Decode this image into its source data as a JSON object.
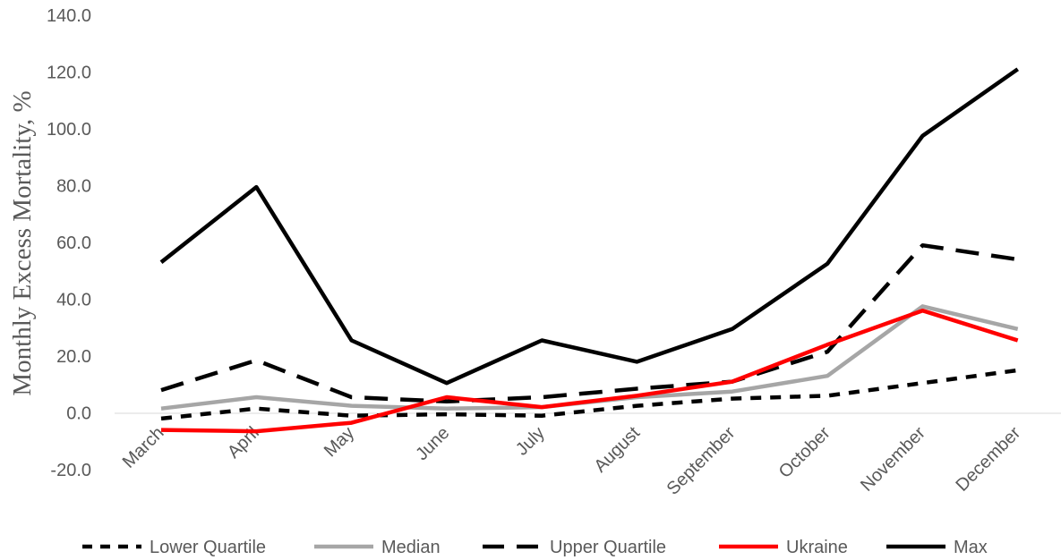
{
  "chart_data": {
    "type": "line",
    "title": "",
    "xlabel": "",
    "ylabel": "Monthly Excess Mortality, %",
    "ylim": [
      -20,
      140
    ],
    "yticks": [
      -20,
      0,
      20,
      40,
      60,
      80,
      100,
      120,
      140
    ],
    "ytick_labels": [
      "-20.0",
      "0.0",
      "20.0",
      "40.0",
      "60.0",
      "80.0",
      "100.0",
      "120.0",
      "140.0"
    ],
    "categories": [
      "March",
      "April",
      "May",
      "June",
      "July",
      "August",
      "September",
      "October",
      "November",
      "December"
    ],
    "grid": false,
    "legend_position": "bottom",
    "series": [
      {
        "name": "Lower Quartile",
        "color": "#000000",
        "style": "short-dash",
        "values": [
          -2.0,
          1.5,
          -1.0,
          -0.5,
          -1.0,
          2.5,
          5.0,
          6.0,
          10.5,
          15.0
        ]
      },
      {
        "name": "Median",
        "color": "#a6a6a6",
        "style": "solid",
        "values": [
          1.5,
          5.5,
          2.5,
          1.5,
          2.0,
          5.5,
          7.5,
          13.0,
          37.5,
          29.5
        ]
      },
      {
        "name": "Upper Quartile",
        "color": "#000000",
        "style": "long-dash",
        "values": [
          8.0,
          18.5,
          5.5,
          4.0,
          5.5,
          8.5,
          11.0,
          21.5,
          59.0,
          54.0
        ]
      },
      {
        "name": "Ukraine",
        "color": "#ff0000",
        "style": "solid",
        "values": [
          -6.0,
          -6.5,
          -3.5,
          5.5,
          2.0,
          6.0,
          11.0,
          24.0,
          36.0,
          25.5
        ]
      },
      {
        "name": "Max",
        "color": "#000000",
        "style": "solid",
        "values": [
          53.0,
          79.5,
          25.5,
          10.5,
          25.5,
          18.0,
          29.5,
          52.5,
          97.5,
          121.0
        ]
      }
    ]
  }
}
